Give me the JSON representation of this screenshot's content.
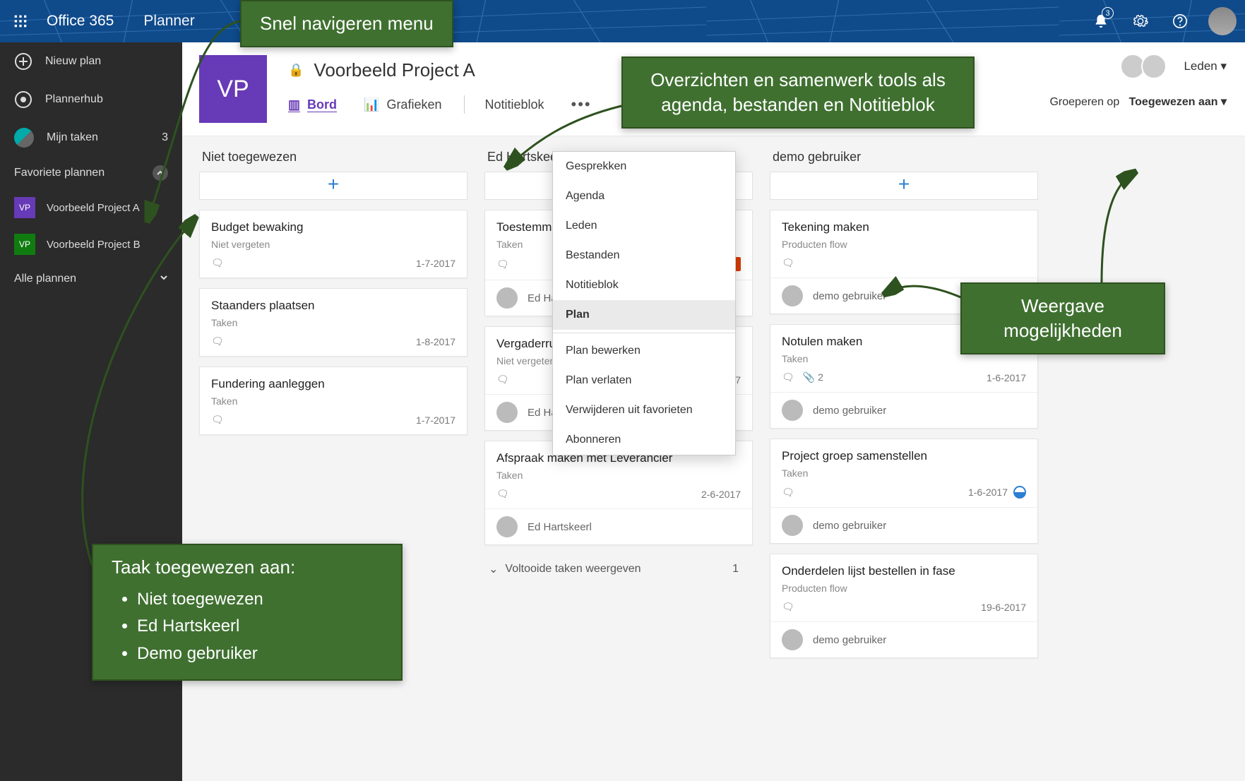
{
  "colors": {
    "topbar": "#0f4a8a",
    "sidebar": "#2b2b2b",
    "accent": "#673ab7",
    "callout_bg": "#3f7030",
    "callout_border": "#2e521f",
    "link": "#2a7fd4",
    "late": "#d83b01"
  },
  "topbar": {
    "brand": "Office 365",
    "app": "Planner",
    "notification_count": "3"
  },
  "sidebar": {
    "new_plan": "Nieuw plan",
    "plannerhub": "Plannerhub",
    "my_tasks": "Mijn taken",
    "my_tasks_count": "3",
    "fav_header": "Favoriete plannen",
    "all_header": "Alle plannen",
    "plans": [
      {
        "badge": "VP",
        "color": "#673ab7",
        "name": "Voorbeeld Project A"
      },
      {
        "badge": "VP",
        "color": "#107c10",
        "name": "Voorbeeld Project B"
      }
    ]
  },
  "plan_header": {
    "badge": "VP",
    "title": "Voorbeeld Project A",
    "tabs": {
      "board": "Bord",
      "charts": "Grafieken",
      "notebook": "Notitieblok"
    },
    "members_label": "Leden ▾",
    "groupby_prefix": "Groeperen op",
    "groupby_value": "Toegewezen aan  ▾"
  },
  "board": {
    "add": "+",
    "completed_label": "Voltooide taken weergeven",
    "completed_count": "1",
    "columns": [
      {
        "title": "Niet toegewezen",
        "cards": [
          {
            "title": "Budget bewaking",
            "sub": "Niet vergeten",
            "date": "1-7-2017",
            "assignee": null
          },
          {
            "title": "Staanders plaatsen",
            "sub": "Taken",
            "date": "1-8-2017",
            "assignee": null
          },
          {
            "title": "Fundering aanleggen",
            "sub": "Taken",
            "date": "1-7-2017",
            "assignee": null
          }
        ]
      },
      {
        "title": "Ed Hartskeerl",
        "cards": [
          {
            "title": "Toestemming…",
            "sub": "Taken",
            "late": "1 mei",
            "assignee": "Ed Hartskeerl",
            "av": "ed"
          },
          {
            "title": "Vergaderruim…",
            "sub": "Niet vergeten",
            "date": "2017",
            "assignee": "Ed Hartskeerl",
            "av": "ed"
          },
          {
            "title": "Afspraak maken met Leverancier",
            "sub": "Taken",
            "date": "2-6-2017",
            "assignee": "Ed Hartskeerl",
            "av": "ed"
          }
        ]
      },
      {
        "title": "demo gebruiker",
        "cards": [
          {
            "title": "Tekening maken",
            "sub": "Producten flow",
            "date": "",
            "assignee": "demo gebruiker",
            "av": "demo"
          },
          {
            "title": "Notulen maken",
            "sub": "Taken",
            "date": "1-6-2017",
            "attach": "2",
            "assignee": "demo gebruiker",
            "av": "demo"
          },
          {
            "title": "Project groep samenstellen",
            "sub": "Taken",
            "date": "1-6-2017",
            "progress": true,
            "assignee": "demo gebruiker",
            "av": "demo"
          },
          {
            "title": "Onderdelen lijst bestellen in fase",
            "sub": "Producten flow",
            "date": "19-6-2017",
            "assignee": "demo gebruiker",
            "av": "demo"
          }
        ]
      }
    ]
  },
  "dropdown": {
    "items_a": [
      "Gesprekken",
      "Agenda",
      "Leden",
      "Bestanden",
      "Notitieblok",
      "Plan"
    ],
    "items_b": [
      "Plan bewerken",
      "Plan verlaten",
      "Verwijderen uit favorieten",
      "Abonneren"
    ],
    "selected": "Plan"
  },
  "callouts": {
    "nav": "Snel navigeren menu",
    "tools": "Overzichten en samenwerk tools als agenda, bestanden en Notitieblok",
    "view": "Weergave mogelijkheden",
    "assigned_title": "Taak toegewezen aan:",
    "assigned_items": [
      "Niet toegewezen",
      "Ed Hartskeerl",
      "Demo gebruiker"
    ]
  }
}
